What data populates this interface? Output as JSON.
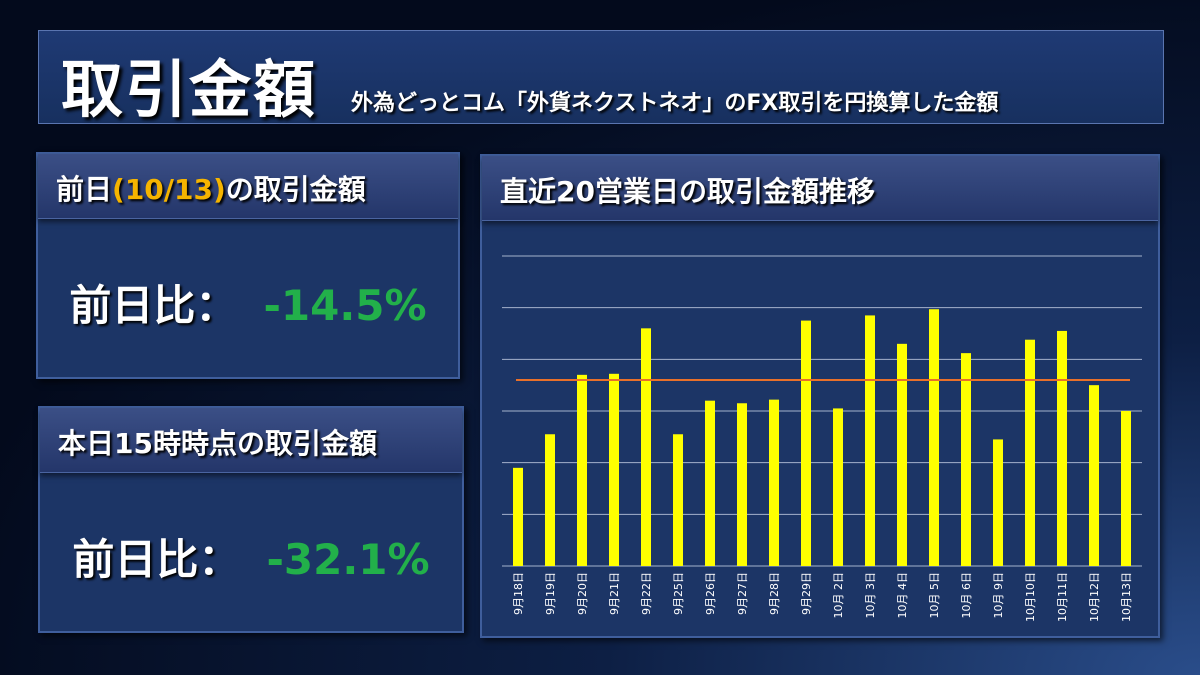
{
  "header": {
    "title": "取引金額",
    "subtitle": "外為どっとコム「外貨ネクストネオ」のFX取引を円換算した金額"
  },
  "panel_prev_day": {
    "title_prefix": "前日",
    "title_date": "(10/13)",
    "title_suffix": "の取引金額",
    "ratio_label": "前日比：",
    "ratio_value": "-14.5%",
    "value_color": "#22b04a"
  },
  "panel_today": {
    "title": "本日15時時点の取引金額",
    "ratio_label": "前日比：",
    "ratio_value": "-32.1%",
    "value_color": "#22b04a"
  },
  "chart_panel": {
    "title": "直近20営業日の取引金額推移"
  },
  "chart_data": {
    "type": "bar",
    "title": "直近20営業日の取引金額推移",
    "categories": [
      "9月18日",
      "9月19日",
      "9月20日",
      "9月21日",
      "9月22日",
      "9月25日",
      "9月26日",
      "9月27日",
      "9月28日",
      "9月29日",
      "10月 2日",
      "10月 3日",
      "10月 4日",
      "10月 5日",
      "10月 6日",
      "10月 9日",
      "10月10日",
      "10月11日",
      "10月12日",
      "10月13日"
    ],
    "values": [
      1.9,
      2.55,
      3.7,
      3.72,
      4.6,
      2.55,
      3.2,
      3.15,
      3.22,
      4.75,
      3.05,
      4.85,
      4.3,
      4.97,
      4.12,
      2.45,
      4.38,
      4.55,
      3.5,
      3.0
    ],
    "average": 3.6,
    "ylim": [
      0,
      6
    ],
    "gridlines": 6,
    "y_tick_labels_shown": false,
    "bar_color": "#ffff00",
    "average_line_color": "#e8702a",
    "grid": true
  }
}
